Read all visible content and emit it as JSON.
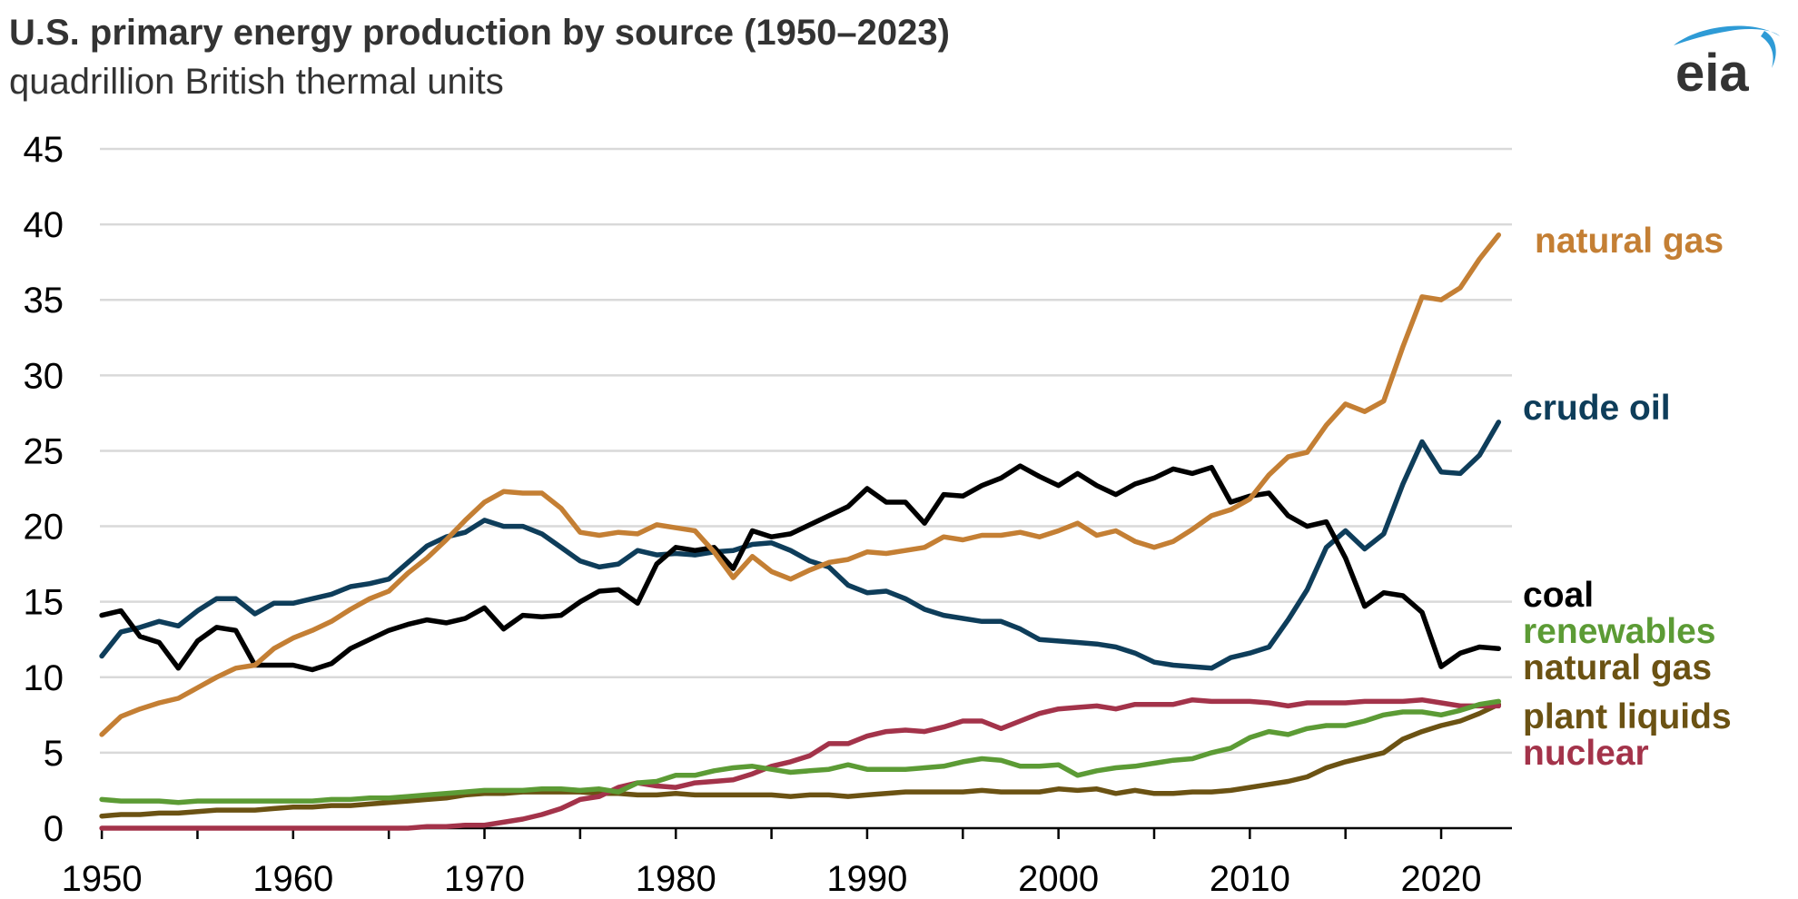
{
  "title": "U.S. primary energy production by source (1950–2023)",
  "subtitle": "quadrillion British thermal units",
  "logo_text": "eia",
  "colors": {
    "natural_gas": "#C47F34",
    "crude_oil": "#0E3D5A",
    "coal": "#000000",
    "renewables": "#5C9B35",
    "ngpl": "#6B5213",
    "nuclear": "#A3334A",
    "grid": "#D9D9D9",
    "logo_blue": "#2E9BD6"
  },
  "chart_data": {
    "type": "line",
    "title": "U.S. primary energy production by source (1950–2023)",
    "subtitle": "quadrillion British thermal units",
    "xlabel": "",
    "ylabel": "",
    "xlim": [
      1950,
      2023
    ],
    "ylim": [
      0,
      45
    ],
    "yticks": [
      "0",
      "5",
      "10",
      "15",
      "20",
      "25",
      "30",
      "35",
      "40",
      "45"
    ],
    "xticks": [
      "1950",
      "1960",
      "1970",
      "1980",
      "1990",
      "2000",
      "2010",
      "2020"
    ],
    "grid": true,
    "legend": "inline labels at right end of lines",
    "x": [
      1950,
      1951,
      1952,
      1953,
      1954,
      1955,
      1956,
      1957,
      1958,
      1959,
      1960,
      1961,
      1962,
      1963,
      1964,
      1965,
      1966,
      1967,
      1968,
      1969,
      1970,
      1971,
      1972,
      1973,
      1974,
      1975,
      1976,
      1977,
      1978,
      1979,
      1980,
      1981,
      1982,
      1983,
      1984,
      1985,
      1986,
      1987,
      1988,
      1989,
      1990,
      1991,
      1992,
      1993,
      1994,
      1995,
      1996,
      1997,
      1998,
      1999,
      2000,
      2001,
      2002,
      2003,
      2004,
      2005,
      2006,
      2007,
      2008,
      2009,
      2010,
      2011,
      2012,
      2013,
      2014,
      2015,
      2016,
      2017,
      2018,
      2019,
      2020,
      2021,
      2022,
      2023
    ],
    "series": [
      {
        "name": "natural gas",
        "key": "natural_gas",
        "label_lines": [
          "natural gas"
        ],
        "values": [
          6.2,
          7.4,
          7.9,
          8.3,
          8.6,
          9.3,
          10.0,
          10.6,
          10.8,
          11.9,
          12.6,
          13.1,
          13.7,
          14.5,
          15.2,
          15.7,
          16.9,
          17.9,
          19.1,
          20.4,
          21.6,
          22.3,
          22.2,
          22.2,
          21.2,
          19.6,
          19.4,
          19.6,
          19.5,
          20.1,
          19.9,
          19.7,
          18.3,
          16.6,
          18.0,
          17.0,
          16.5,
          17.1,
          17.6,
          17.8,
          18.3,
          18.2,
          18.4,
          18.6,
          19.3,
          19.1,
          19.4,
          19.4,
          19.6,
          19.3,
          19.7,
          20.2,
          19.4,
          19.7,
          19.0,
          18.6,
          19.0,
          19.8,
          20.7,
          21.1,
          21.8,
          23.4,
          24.6,
          24.9,
          26.7,
          28.1,
          27.6,
          28.3,
          31.9,
          35.2,
          35.0,
          35.8,
          37.7,
          39.3
        ]
      },
      {
        "name": "crude oil",
        "key": "crude_oil",
        "label_lines": [
          "crude oil"
        ],
        "values": [
          11.4,
          13.0,
          13.3,
          13.7,
          13.4,
          14.4,
          15.2,
          15.2,
          14.2,
          14.9,
          14.9,
          15.2,
          15.5,
          16.0,
          16.2,
          16.5,
          17.6,
          18.7,
          19.3,
          19.6,
          20.4,
          20.0,
          20.0,
          19.5,
          18.6,
          17.7,
          17.3,
          17.5,
          18.4,
          18.1,
          18.2,
          18.1,
          18.3,
          18.4,
          18.8,
          18.9,
          18.4,
          17.7,
          17.3,
          16.1,
          15.6,
          15.7,
          15.2,
          14.5,
          14.1,
          13.9,
          13.7,
          13.7,
          13.2,
          12.5,
          12.4,
          12.3,
          12.2,
          12.0,
          11.6,
          11.0,
          10.8,
          10.7,
          10.6,
          11.3,
          11.6,
          12.0,
          13.8,
          15.8,
          18.6,
          19.7,
          18.5,
          19.5,
          22.8,
          25.6,
          23.6,
          23.5,
          24.7,
          26.9
        ]
      },
      {
        "name": "coal",
        "key": "coal",
        "label_lines": [
          "coal"
        ],
        "values": [
          14.1,
          14.4,
          12.7,
          12.3,
          10.6,
          12.4,
          13.3,
          13.1,
          10.8,
          10.8,
          10.8,
          10.5,
          10.9,
          11.9,
          12.5,
          13.1,
          13.5,
          13.8,
          13.6,
          13.9,
          14.6,
          13.2,
          14.1,
          14.0,
          14.1,
          15.0,
          15.7,
          15.8,
          14.9,
          17.5,
          18.6,
          18.4,
          18.6,
          17.2,
          19.7,
          19.3,
          19.5,
          20.1,
          20.7,
          21.3,
          22.5,
          21.6,
          21.6,
          20.2,
          22.1,
          22.0,
          22.7,
          23.2,
          24.0,
          23.3,
          22.7,
          23.5,
          22.7,
          22.1,
          22.8,
          23.2,
          23.8,
          23.5,
          23.9,
          21.6,
          22.0,
          22.2,
          20.7,
          20.0,
          20.3,
          17.9,
          14.7,
          15.6,
          15.4,
          14.3,
          10.7,
          11.6,
          12.0,
          11.9
        ]
      },
      {
        "name": "renewables",
        "key": "renewables",
        "label_lines": [
          "renewables"
        ],
        "values": [
          1.9,
          1.8,
          1.8,
          1.8,
          1.7,
          1.8,
          1.8,
          1.8,
          1.8,
          1.8,
          1.8,
          1.8,
          1.9,
          1.9,
          2.0,
          2.0,
          2.1,
          2.2,
          2.3,
          2.4,
          2.5,
          2.5,
          2.5,
          2.6,
          2.6,
          2.5,
          2.6,
          2.4,
          3.0,
          3.1,
          3.5,
          3.5,
          3.8,
          4.0,
          4.1,
          3.9,
          3.7,
          3.8,
          3.9,
          4.2,
          3.9,
          3.9,
          3.9,
          4.0,
          4.1,
          4.4,
          4.6,
          4.5,
          4.1,
          4.1,
          4.2,
          3.5,
          3.8,
          4.0,
          4.1,
          4.3,
          4.5,
          4.6,
          5.0,
          5.3,
          6.0,
          6.4,
          6.2,
          6.6,
          6.8,
          6.8,
          7.1,
          7.5,
          7.7,
          7.7,
          7.5,
          7.8,
          8.2,
          8.4
        ]
      },
      {
        "name": "natural gas plant liquids",
        "key": "ngpl",
        "label_lines": [
          "natural gas",
          "plant liquids"
        ],
        "values": [
          0.8,
          0.9,
          0.9,
          1.0,
          1.0,
          1.1,
          1.2,
          1.2,
          1.2,
          1.3,
          1.4,
          1.4,
          1.5,
          1.5,
          1.6,
          1.7,
          1.8,
          1.9,
          2.0,
          2.2,
          2.3,
          2.3,
          2.4,
          2.4,
          2.4,
          2.4,
          2.3,
          2.3,
          2.2,
          2.2,
          2.3,
          2.2,
          2.2,
          2.2,
          2.2,
          2.2,
          2.1,
          2.2,
          2.2,
          2.1,
          2.2,
          2.3,
          2.4,
          2.4,
          2.4,
          2.4,
          2.5,
          2.4,
          2.4,
          2.4,
          2.6,
          2.5,
          2.6,
          2.3,
          2.5,
          2.3,
          2.3,
          2.4,
          2.4,
          2.5,
          2.7,
          2.9,
          3.1,
          3.4,
          4.0,
          4.4,
          4.7,
          5.0,
          5.9,
          6.4,
          6.8,
          7.1,
          7.6,
          8.2
        ]
      },
      {
        "name": "nuclear",
        "key": "nuclear",
        "label_lines": [
          "nuclear"
        ],
        "values": [
          0.0,
          0.0,
          0.0,
          0.0,
          0.0,
          0.0,
          0.0,
          0.0,
          0.0,
          0.0,
          0.0,
          0.0,
          0.0,
          0.0,
          0.0,
          0.0,
          0.0,
          0.1,
          0.1,
          0.2,
          0.2,
          0.4,
          0.6,
          0.9,
          1.3,
          1.9,
          2.1,
          2.7,
          3.0,
          2.8,
          2.7,
          3.0,
          3.1,
          3.2,
          3.6,
          4.1,
          4.4,
          4.8,
          5.6,
          5.6,
          6.1,
          6.4,
          6.5,
          6.4,
          6.7,
          7.1,
          7.1,
          6.6,
          7.1,
          7.6,
          7.9,
          8.0,
          8.1,
          7.9,
          8.2,
          8.2,
          8.2,
          8.5,
          8.4,
          8.4,
          8.4,
          8.3,
          8.1,
          8.3,
          8.3,
          8.3,
          8.4,
          8.4,
          8.4,
          8.5,
          8.3,
          8.1,
          8.1,
          8.1
        ]
      }
    ]
  }
}
